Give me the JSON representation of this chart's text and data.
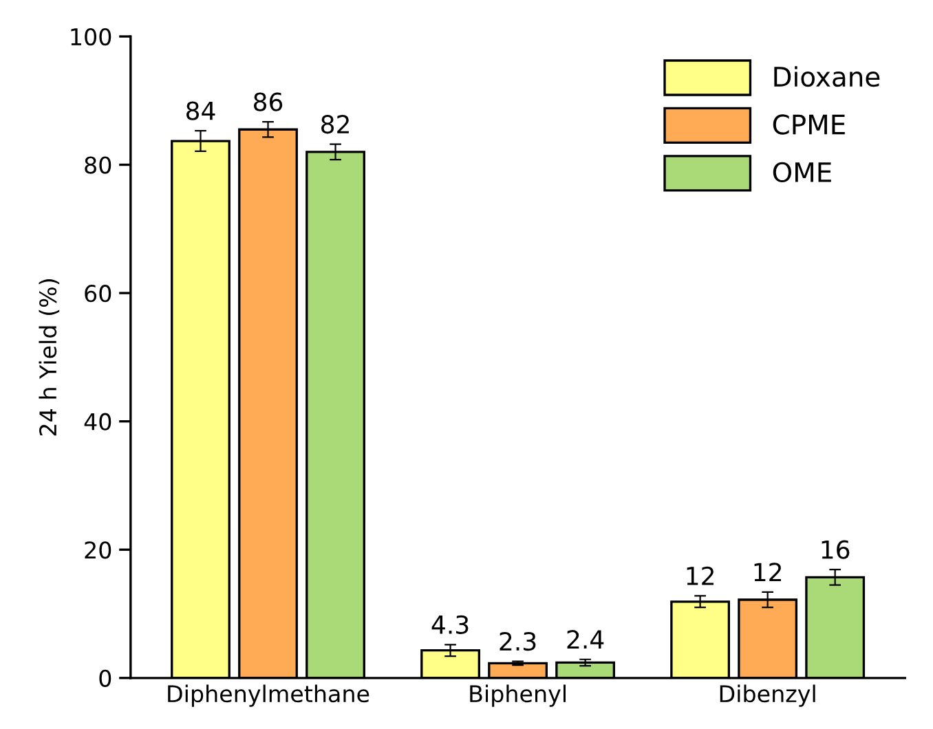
{
  "chart_data": {
    "type": "bar",
    "ylabel": "24 h Yield (%)",
    "categories": [
      "Diphenylmethane",
      "Biphenyl",
      "Dibenzyl"
    ],
    "series": [
      {
        "name": "Dioxane",
        "color": "#ffff88",
        "values": [
          83.7,
          4.3,
          11.9
        ],
        "errors": [
          1.6,
          0.9,
          0.9
        ],
        "value_labels": [
          "84",
          "4.3",
          "12"
        ]
      },
      {
        "name": "CPME",
        "color": "#ffab55",
        "values": [
          85.5,
          2.3,
          12.2
        ],
        "errors": [
          1.2,
          0.3,
          1.2
        ],
        "value_labels": [
          "86",
          "2.3",
          "12"
        ]
      },
      {
        "name": "OME",
        "color": "#aada77",
        "values": [
          82.0,
          2.4,
          15.7
        ],
        "errors": [
          1.2,
          0.5,
          1.2
        ],
        "value_labels": [
          "82",
          "2.4",
          "16"
        ]
      }
    ],
    "ylim": [
      0,
      100
    ],
    "yticks": [
      0,
      20,
      40,
      60,
      80,
      100
    ],
    "grid": false,
    "legend": "top right"
  }
}
